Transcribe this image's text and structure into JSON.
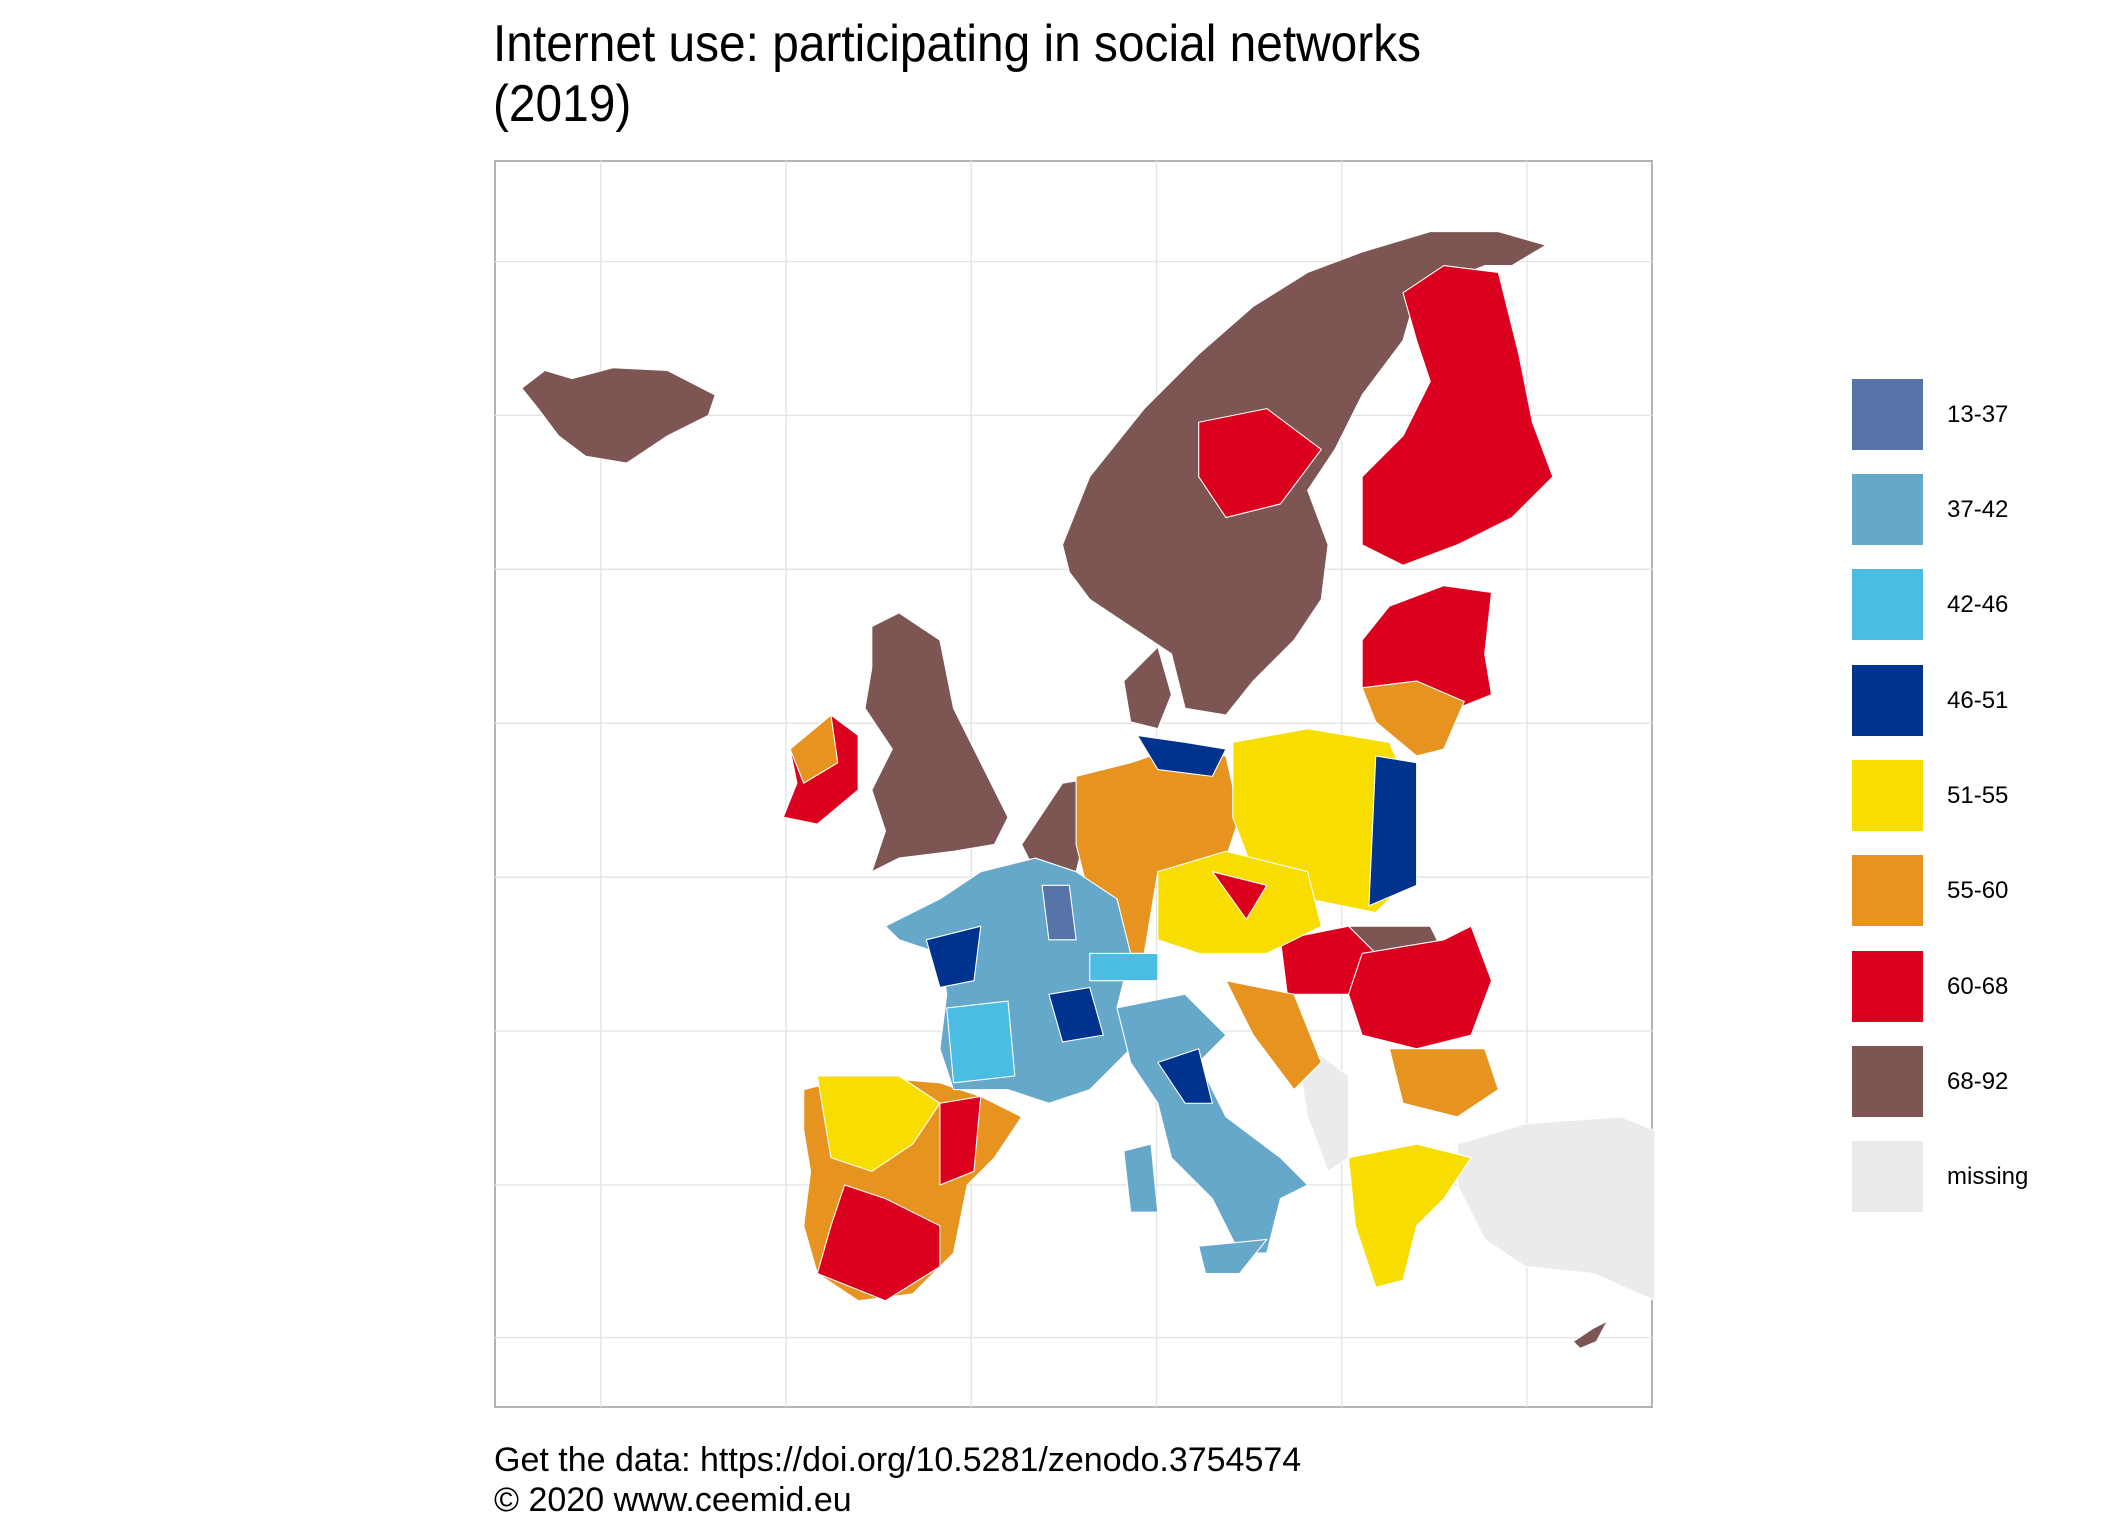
{
  "chart_data": {
    "type": "map",
    "title_line1": "Internet use: participating in social networks",
    "title_line2": "(2019)",
    "grid": true,
    "legend_position": "right",
    "legend": [
      {
        "label": "13-37",
        "color": "#5674A8"
      },
      {
        "label": "37-42",
        "color": "#65A8CA"
      },
      {
        "label": "42-46",
        "color": "#4BBDE2"
      },
      {
        "label": "46-51",
        "color": "#00338D"
      },
      {
        "label": "51-55",
        "color": "#F7DE00"
      },
      {
        "label": "55-60",
        "color": "#E7931F"
      },
      {
        "label": "60-68",
        "color": "#DC001F"
      },
      {
        "label": "68-92",
        "color": "#7D5653"
      },
      {
        "label": "missing",
        "color": "#EBEBEB"
      }
    ]
  },
  "caption": {
    "line1": "Get the data: https://doi.org/10.5281/zenodo.3754574",
    "line2": "© 2020 www.ceemid.eu"
  }
}
